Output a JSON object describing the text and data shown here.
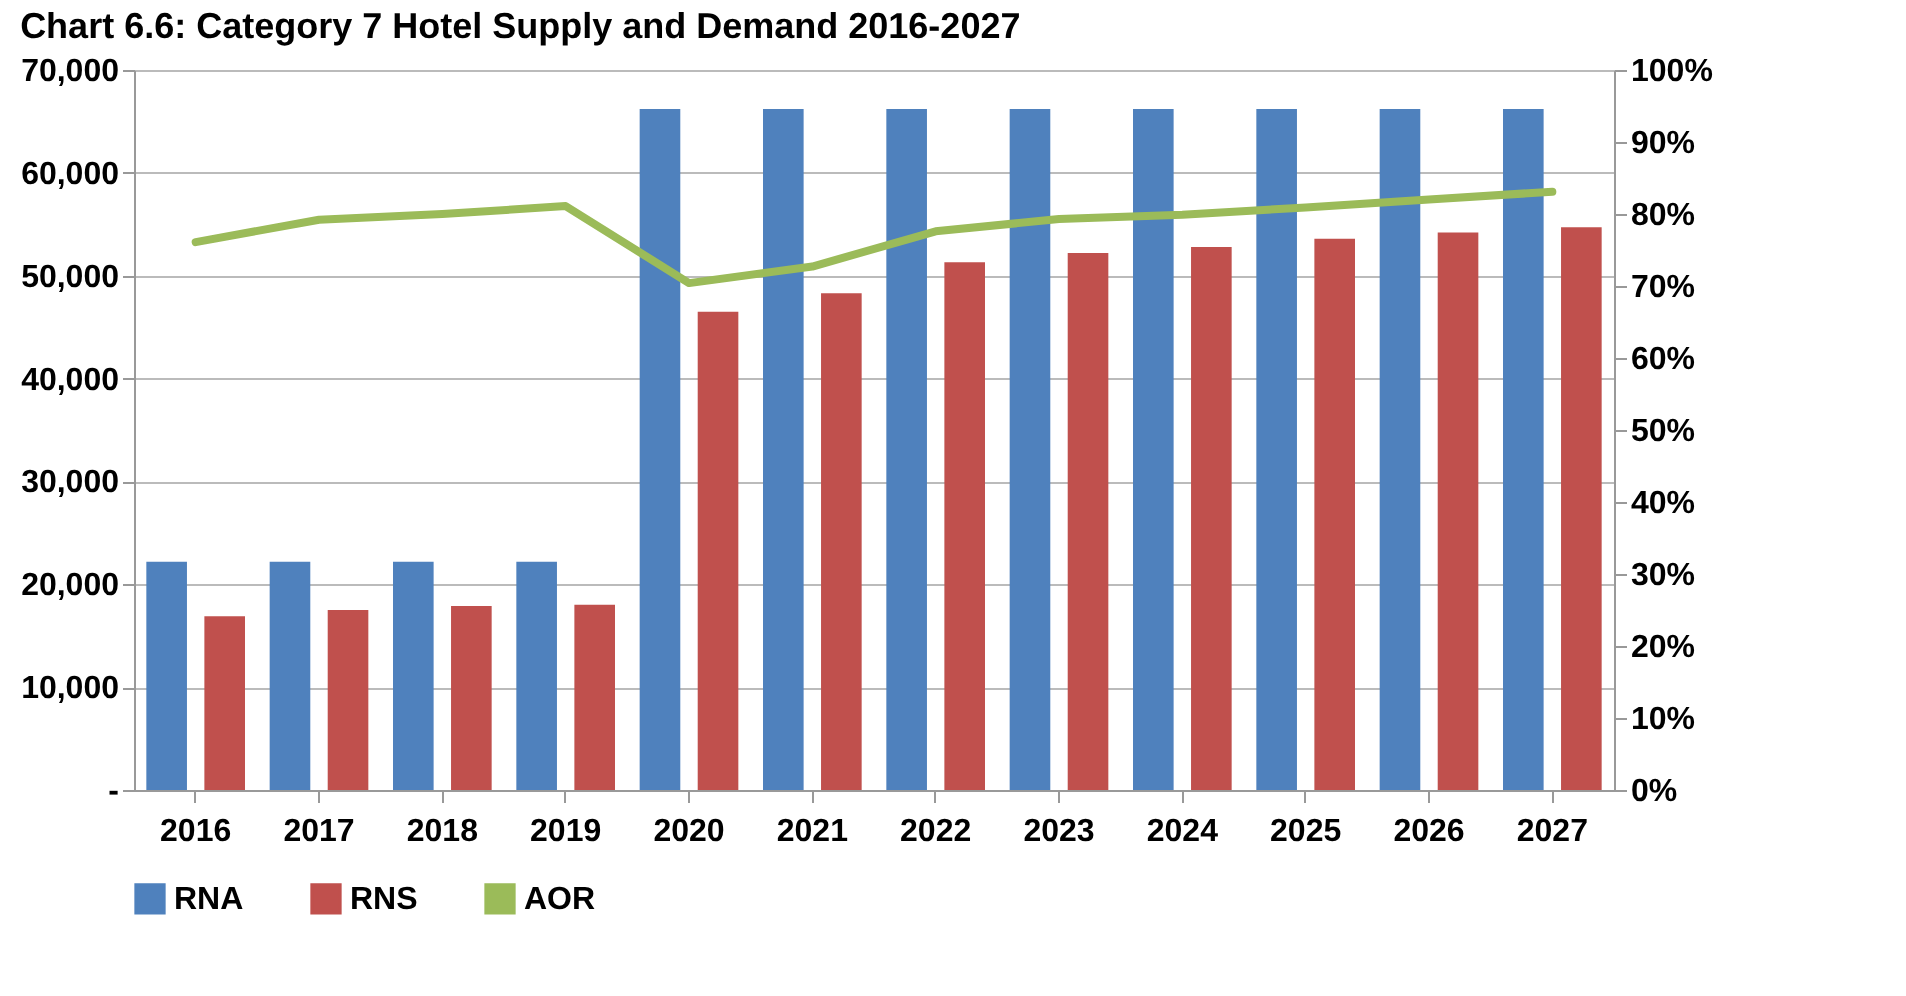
{
  "chart_data": {
    "type": "bar",
    "title": "Chart 6.6: Category 7 Hotel Supply and Demand 2016-2027",
    "categories": [
      "2016",
      "2017",
      "2018",
      "2019",
      "2020",
      "2021",
      "2022",
      "2023",
      "2024",
      "2025",
      "2026",
      "2027"
    ],
    "series": [
      {
        "name": "RNA",
        "color": "#4f81bd",
        "values": [
          22200,
          22200,
          22200,
          22200,
          66200,
          66200,
          66200,
          66200,
          66200,
          66200,
          66200,
          66200
        ]
      },
      {
        "name": "RNS",
        "color": "#c0504d",
        "values": [
          16900,
          17500,
          17900,
          18000,
          46500,
          48300,
          51300,
          52200,
          52800,
          53600,
          54200,
          54700
        ]
      },
      {
        "name": "AOR",
        "type": "line",
        "axis": "y2",
        "color": "#9bbb59",
        "values": [
          76.1,
          79.2,
          80.0,
          81.1,
          70.4,
          72.7,
          77.6,
          79.3,
          79.9,
          80.9,
          82.0,
          83.1
        ]
      }
    ],
    "ylim": [
      0,
      70000
    ],
    "yticks": [
      {
        "value": 0,
        "label": "-"
      },
      {
        "value": 10000,
        "label": "10,000"
      },
      {
        "value": 20000,
        "label": "20,000"
      },
      {
        "value": 30000,
        "label": "30,000"
      },
      {
        "value": 40000,
        "label": "40,000"
      },
      {
        "value": 50000,
        "label": "50,000"
      },
      {
        "value": 60000,
        "label": "60,000"
      },
      {
        "value": 70000,
        "label": "70,000"
      }
    ],
    "y2lim": [
      0,
      100
    ],
    "y2ticks": [
      {
        "value": 0,
        "label": "0%"
      },
      {
        "value": 10,
        "label": "10%"
      },
      {
        "value": 20,
        "label": "20%"
      },
      {
        "value": 30,
        "label": "30%"
      },
      {
        "value": 40,
        "label": "40%"
      },
      {
        "value": 50,
        "label": "50%"
      },
      {
        "value": 60,
        "label": "60%"
      },
      {
        "value": 70,
        "label": "70%"
      },
      {
        "value": 80,
        "label": "80%"
      },
      {
        "value": 90,
        "label": "90%"
      },
      {
        "value": 100,
        "label": "100%"
      }
    ],
    "grid": "y",
    "legend": "bottom",
    "line_style": "solid"
  }
}
